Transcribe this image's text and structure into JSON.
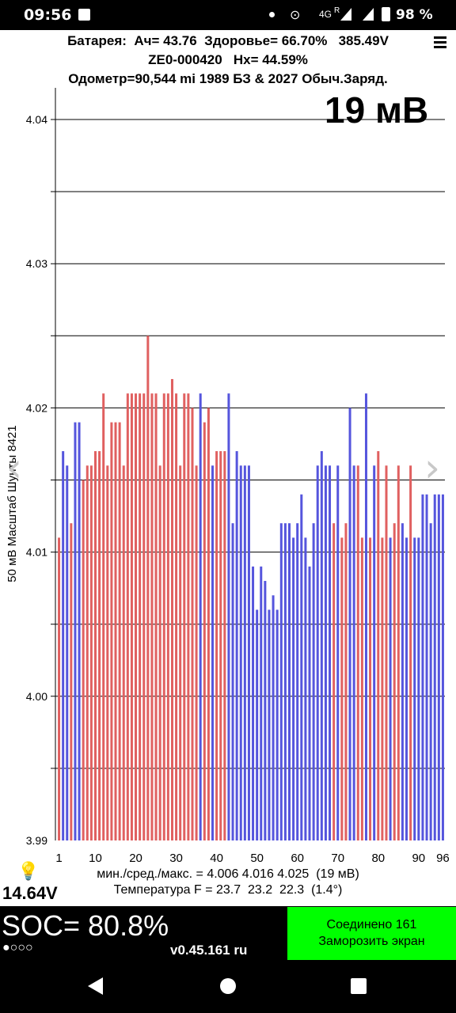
{
  "status_bar": {
    "time": "09:56",
    "network": "4G",
    "roaming": "R",
    "battery_percent": "98 %",
    "icons": [
      "notification-square-icon",
      "dot-icon",
      "location-icon",
      "signal-icon",
      "battery-icon"
    ]
  },
  "header": {
    "line1": "Батарея:  Ач= 43.76  Здоровье= 66.70%   385.49V",
    "line2": "ZE0-000420   Hx= 44.59%",
    "line3": "Одометр=90,544 mi 1989 БЗ & 2027 Обыч.Заряд.",
    "big_value": "19 мВ"
  },
  "stats": {
    "line1": "мин./сред./макс. = 4.006 4.016 4.025  (19 мВ)",
    "line2": "Температура F = 23.7  23.2  22.3  (1.4°)"
  },
  "voltage_12v": "14.64V",
  "bottom": {
    "soc": "SOC= 80.8%",
    "dots": "●○○○",
    "version": "v0.45.161 ru",
    "connected": "Соединено 161",
    "freeze": "Заморозить экран"
  },
  "colors": {
    "bar_red": "#e06060",
    "bar_blue": "#5555dd",
    "grid": "#000000",
    "freeze_button": "#00ff00"
  },
  "chart_data": {
    "type": "bar",
    "ylabel": "50 мВ Масштаб  Шунты 8421",
    "ylim": [
      3.99,
      4.04
    ],
    "yticks": [
      "4.04",
      "4.03",
      "4.02",
      "4.01",
      "4.00",
      "3.99"
    ],
    "yticks_values": [
      4.04,
      4.03,
      4.02,
      4.01,
      4.0,
      3.99
    ],
    "gridlines": [
      4.04,
      4.035,
      4.03,
      4.025,
      4.02,
      4.015,
      4.01,
      4.005,
      4.0,
      3.995
    ],
    "xticks": [
      "1",
      "10",
      "20",
      "30",
      "40",
      "50",
      "60",
      "70",
      "80",
      "90",
      "96"
    ],
    "xticks_values": [
      1,
      10,
      20,
      30,
      40,
      50,
      60,
      70,
      80,
      90,
      96
    ],
    "series": [
      {
        "values": [
          4.011,
          4.017,
          4.016,
          4.012,
          4.019,
          4.019,
          4.015,
          4.016,
          4.016,
          4.017,
          4.017,
          4.021,
          4.016,
          4.019,
          4.019,
          4.019,
          4.016,
          4.021,
          4.021,
          4.021,
          4.021,
          4.021,
          4.025,
          4.021,
          4.021,
          4.016,
          4.021,
          4.021,
          4.022,
          4.021,
          4.016,
          4.021,
          4.021,
          4.02,
          4.016,
          4.021,
          4.019,
          4.02,
          4.016,
          4.017,
          4.017,
          4.017,
          4.021,
          4.012,
          4.017,
          4.016,
          4.016,
          4.016,
          4.009,
          4.006,
          4.009,
          4.008,
          4.006,
          4.007,
          4.006,
          4.012,
          4.012,
          4.012,
          4.011,
          4.012,
          4.014,
          4.011,
          4.009,
          4.012,
          4.016,
          4.017,
          4.016,
          4.016,
          4.012,
          4.016,
          4.011,
          4.012,
          4.02,
          4.016,
          4.016,
          4.011,
          4.021,
          4.011,
          4.016,
          4.017,
          4.011,
          4.016,
          4.011,
          4.012,
          4.016,
          4.012,
          4.011,
          4.016,
          4.011,
          4.011,
          4.014,
          4.014,
          4.012,
          4.014,
          4.014,
          4.014
        ],
        "colors": [
          "r",
          "b",
          "b",
          "r",
          "b",
          "b",
          "r",
          "r",
          "r",
          "r",
          "r",
          "r",
          "r",
          "r",
          "r",
          "r",
          "r",
          "r",
          "r",
          "r",
          "r",
          "r",
          "r",
          "r",
          "r",
          "r",
          "r",
          "r",
          "r",
          "r",
          "r",
          "r",
          "r",
          "r",
          "r",
          "b",
          "r",
          "r",
          "b",
          "r",
          "r",
          "r",
          "b",
          "b",
          "b",
          "b",
          "b",
          "b",
          "b",
          "b",
          "b",
          "b",
          "b",
          "b",
          "b",
          "b",
          "b",
          "b",
          "b",
          "b",
          "b",
          "b",
          "b",
          "b",
          "b",
          "b",
          "b",
          "b",
          "r",
          "b",
          "r",
          "r",
          "b",
          "b",
          "r",
          "r",
          "b",
          "r",
          "b",
          "r",
          "r",
          "r",
          "b",
          "r",
          "r",
          "b",
          "b",
          "r",
          "b",
          "b",
          "b",
          "b",
          "b",
          "b",
          "b",
          "b"
        ]
      }
    ]
  }
}
